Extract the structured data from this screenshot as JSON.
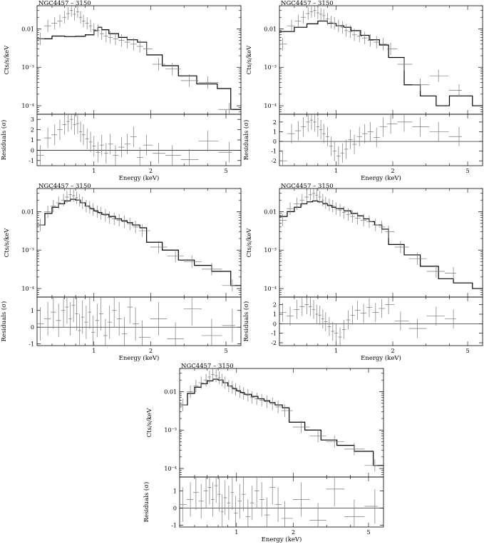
{
  "chart_data": [
    {
      "type": "line",
      "title": "NGC4457 – 3150",
      "xlabel": "Energy (keV)",
      "ylabel": "Cts/s/keV",
      "residual_ylabel": "Residuals (σ)",
      "xscale": "log",
      "yscale": "log",
      "xlim": [
        0.5,
        6.0
      ],
      "ylim": [
        6e-05,
        0.04
      ],
      "xticks": [
        "1",
        "2",
        "5"
      ],
      "yticks": [
        "0.01",
        "10⁻³",
        "10⁻⁴"
      ],
      "residual_ylim": [
        -1.5,
        3.5
      ],
      "residual_yticks": [
        "3",
        "2",
        "1",
        "0",
        "-1"
      ],
      "model": {
        "edges": [
          0.5,
          0.6,
          0.7,
          0.8,
          0.9,
          1.0,
          1.05,
          1.1,
          1.2,
          1.35,
          1.5,
          1.7,
          1.9,
          2.3,
          2.8,
          3.5,
          4.5,
          5.3,
          6.0
        ],
        "values": [
          0.0055,
          0.0065,
          0.0063,
          0.0064,
          0.007,
          0.009,
          0.011,
          0.0095,
          0.0075,
          0.006,
          0.0052,
          0.0045,
          0.0021,
          0.0011,
          0.0006,
          0.00037,
          0.00028,
          8e-05
        ]
      },
      "data": {
        "x": [
          0.52,
          0.57,
          0.62,
          0.66,
          0.7,
          0.73,
          0.76,
          0.79,
          0.82,
          0.85,
          0.88,
          0.92,
          0.96,
          1.0,
          1.05,
          1.1,
          1.16,
          1.22,
          1.3,
          1.4,
          1.5,
          1.62,
          1.75,
          1.9,
          2.2,
          2.6,
          3.2,
          4.0,
          5.2
        ],
        "y": [
          0.0055,
          0.012,
          0.014,
          0.016,
          0.02,
          0.025,
          0.03,
          0.024,
          0.028,
          0.02,
          0.016,
          0.014,
          0.012,
          0.0095,
          0.009,
          0.0075,
          0.0065,
          0.006,
          0.0055,
          0.005,
          0.0045,
          0.004,
          0.0035,
          0.003,
          0.0012,
          0.0009,
          0.00045,
          0.0004,
          8e-05
        ],
        "resid": [
          -0.5,
          1.2,
          1.5,
          2.0,
          2.5,
          2.8,
          3.0,
          2.5,
          2.6,
          1.8,
          1.5,
          1.1,
          0.8,
          0.4,
          -0.2,
          0.5,
          -0.3,
          0.6,
          -0.5,
          0.3,
          0.6,
          1.3,
          -0.7,
          0.5,
          -0.3,
          -0.5,
          -0.9,
          0.9,
          -0.2
        ]
      }
    },
    {
      "type": "line",
      "title": "NGC4457 – 3150",
      "xlabel": "Energy (keV)",
      "ylabel": "Cts/s/keV",
      "residual_ylabel": "Residuals (σ)",
      "xscale": "log",
      "yscale": "log",
      "xlim": [
        0.5,
        6.0
      ],
      "ylim": [
        6e-05,
        0.04
      ],
      "xticks": [
        "1",
        "2",
        "5"
      ],
      "yticks": [
        "0.01",
        "10⁻³",
        "10⁻⁴"
      ],
      "residual_ylim": [
        -2.5,
        2.8
      ],
      "residual_yticks": [
        "2",
        "1",
        "0",
        "-1",
        "-2"
      ],
      "model": {
        "edges": [
          0.5,
          0.6,
          0.7,
          0.8,
          0.9,
          1.0,
          1.1,
          1.2,
          1.35,
          1.5,
          1.7,
          1.9,
          2.3,
          2.8,
          3.4,
          4.0,
          5.3,
          6.0
        ],
        "values": [
          0.0085,
          0.011,
          0.0135,
          0.016,
          0.014,
          0.012,
          0.011,
          0.009,
          0.0068,
          0.0052,
          0.0038,
          0.0018,
          0.00035,
          0.00018,
          0.0001,
          0.00018,
          0.0001
        ]
      },
      "data": {
        "x": [
          0.52,
          0.58,
          0.63,
          0.67,
          0.71,
          0.74,
          0.77,
          0.8,
          0.83,
          0.86,
          0.9,
          0.94,
          0.98,
          1.03,
          1.08,
          1.13,
          1.19,
          1.25,
          1.33,
          1.42,
          1.52,
          1.64,
          1.78,
          1.95,
          2.3,
          2.8,
          3.5,
          4.5
        ],
        "y": [
          0.004,
          0.012,
          0.016,
          0.02,
          0.025,
          0.028,
          0.03,
          0.026,
          0.024,
          0.022,
          0.018,
          0.015,
          0.014,
          0.012,
          0.011,
          0.009,
          0.0085,
          0.007,
          0.0065,
          0.0058,
          0.005,
          0.0045,
          0.004,
          0.003,
          0.0012,
          0.00035,
          0.0006,
          0.00025
        ],
        "resid": [
          -2.0,
          0.8,
          1.1,
          1.5,
          2.0,
          2.2,
          2.0,
          1.5,
          1.2,
          0.8,
          0.5,
          -0.5,
          -1.0,
          -1.5,
          -1.2,
          -0.8,
          0.2,
          -0.3,
          0.5,
          0.8,
          1.0,
          0.4,
          1.5,
          1.8,
          2.0,
          1.5,
          1.0,
          0.5
        ]
      }
    },
    {
      "type": "line",
      "title": "NGC4457 – 3150",
      "xlabel": "Energy (keV)",
      "ylabel": "Cts/s/keV",
      "residual_ylabel": "Residuals (σ)",
      "xscale": "log",
      "yscale": "log",
      "xlim": [
        0.5,
        6.0
      ],
      "ylim": [
        6e-05,
        0.04
      ],
      "xticks": [
        "1",
        "2",
        "5"
      ],
      "yticks": [
        "0.01",
        "10⁻³",
        "10⁻⁴"
      ],
      "residual_ylim": [
        -1.1,
        1.8
      ],
      "residual_yticks": [
        "1",
        "0",
        "-1"
      ],
      "model": {
        "edges": [
          0.5,
          0.55,
          0.6,
          0.65,
          0.7,
          0.75,
          0.8,
          0.85,
          0.9,
          0.95,
          1.0,
          1.05,
          1.1,
          1.2,
          1.3,
          1.4,
          1.5,
          1.6,
          1.75,
          1.9,
          2.3,
          2.8,
          3.4,
          4.2,
          5.3,
          6.0
        ],
        "values": [
          0.0045,
          0.009,
          0.013,
          0.016,
          0.019,
          0.021,
          0.02,
          0.017,
          0.014,
          0.012,
          0.0105,
          0.0095,
          0.0085,
          0.0075,
          0.0065,
          0.0058,
          0.0052,
          0.0045,
          0.0038,
          0.0016,
          0.001,
          0.00055,
          0.0004,
          0.00028,
          0.00012
        ]
      },
      "data": {
        "x": [
          0.52,
          0.57,
          0.61,
          0.65,
          0.69,
          0.72,
          0.75,
          0.78,
          0.81,
          0.84,
          0.87,
          0.91,
          0.95,
          0.99,
          1.04,
          1.09,
          1.15,
          1.21,
          1.28,
          1.36,
          1.45,
          1.55,
          1.66,
          1.8,
          2.2,
          2.7,
          3.3,
          4.2,
          5.4
        ],
        "y": [
          0.0045,
          0.01,
          0.014,
          0.017,
          0.02,
          0.024,
          0.028,
          0.026,
          0.023,
          0.02,
          0.017,
          0.014,
          0.013,
          0.0115,
          0.01,
          0.009,
          0.008,
          0.007,
          0.0065,
          0.006,
          0.0055,
          0.0048,
          0.004,
          0.0032,
          0.0012,
          0.0007,
          0.0005,
          0.00032,
          0.00012
        ],
        "resid": [
          0.2,
          0.5,
          0.9,
          0.4,
          1.0,
          1.2,
          0.5,
          1.3,
          0.8,
          -0.2,
          0.6,
          0.3,
          0.9,
          -0.3,
          0.4,
          0.8,
          -0.5,
          0.3,
          1.0,
          0.5,
          -0.4,
          1.2,
          0.2,
          -0.6,
          0.5,
          -0.7,
          1.1,
          -0.5,
          0.1
        ]
      }
    },
    {
      "type": "line",
      "title": "NGC4457 – 3150",
      "xlabel": "Energy (keV)",
      "ylabel": "Cts/s/keV",
      "residual_ylabel": "Residuals (σ)",
      "xscale": "log",
      "yscale": "log",
      "xlim": [
        0.5,
        6.0
      ],
      "ylim": [
        6e-05,
        0.04
      ],
      "xticks": [
        "1",
        "2",
        "5"
      ],
      "yticks": [
        "0.01",
        "10⁻³",
        "10⁻⁴"
      ],
      "residual_ylim": [
        -2.3,
        2.8
      ],
      "residual_yticks": [
        "2",
        "1",
        "0",
        "-1",
        "-2"
      ],
      "model": {
        "edges": [
          0.5,
          0.55,
          0.6,
          0.65,
          0.7,
          0.75,
          0.8,
          0.85,
          0.9,
          0.95,
          1.0,
          1.1,
          1.2,
          1.3,
          1.4,
          1.5,
          1.6,
          1.75,
          1.9,
          2.3,
          2.8,
          3.5,
          4.2,
          5.3,
          6.0
        ],
        "values": [
          0.0075,
          0.01,
          0.013,
          0.016,
          0.018,
          0.019,
          0.018,
          0.016,
          0.0145,
          0.013,
          0.012,
          0.0105,
          0.009,
          0.0078,
          0.0065,
          0.0055,
          0.0045,
          0.0035,
          0.0014,
          0.00075,
          0.00038,
          0.00018,
          0.00014,
          0.0001
        ]
      },
      "data": {
        "x": [
          0.52,
          0.57,
          0.62,
          0.66,
          0.7,
          0.73,
          0.76,
          0.79,
          0.82,
          0.85,
          0.88,
          0.92,
          0.96,
          1.0,
          1.05,
          1.1,
          1.16,
          1.22,
          1.3,
          1.4,
          1.5,
          1.62,
          1.75,
          1.9,
          2.2,
          2.7,
          3.4,
          4.2
        ],
        "y": [
          0.006,
          0.012,
          0.016,
          0.02,
          0.024,
          0.028,
          0.03,
          0.027,
          0.024,
          0.02,
          0.017,
          0.015,
          0.014,
          0.012,
          0.011,
          0.0095,
          0.0085,
          0.0075,
          0.0068,
          0.006,
          0.0055,
          0.0045,
          0.004,
          0.003,
          0.0012,
          0.0006,
          0.00028,
          0.00025
        ],
        "resid": [
          1.2,
          0.8,
          1.5,
          1.8,
          2.0,
          1.8,
          1.5,
          1.0,
          0.9,
          0.5,
          0.2,
          -0.3,
          -0.8,
          -1.0,
          -1.4,
          -0.6,
          0.4,
          0.9,
          1.4,
          1.1,
          1.7,
          1.2,
          1.6,
          2.0,
          0.3,
          -0.5,
          0.8,
          0.5
        ]
      }
    },
    {
      "type": "line",
      "title": "NGC4457 – 3150",
      "xlabel": "Energy (keV)",
      "ylabel": "Cts/s/keV",
      "residual_ylabel": "Residuals (σ)",
      "xscale": "log",
      "yscale": "log",
      "xlim": [
        0.5,
        6.0
      ],
      "ylim": [
        6e-05,
        0.04
      ],
      "xticks": [
        "1",
        "2",
        "5"
      ],
      "yticks": [
        "0.01",
        "10⁻³",
        "10⁻⁴"
      ],
      "residual_ylim": [
        -1.1,
        1.8
      ],
      "residual_yticks": [
        "1",
        "0",
        "-1"
      ],
      "model": {
        "edges": [
          0.5,
          0.55,
          0.6,
          0.65,
          0.7,
          0.75,
          0.8,
          0.85,
          0.9,
          0.95,
          1.0,
          1.05,
          1.1,
          1.2,
          1.3,
          1.4,
          1.5,
          1.6,
          1.75,
          1.9,
          2.3,
          2.8,
          3.4,
          4.2,
          5.3,
          6.0
        ],
        "values": [
          0.0045,
          0.009,
          0.013,
          0.016,
          0.019,
          0.021,
          0.02,
          0.017,
          0.014,
          0.012,
          0.0105,
          0.0095,
          0.0085,
          0.0075,
          0.0065,
          0.0058,
          0.0052,
          0.0045,
          0.0038,
          0.0016,
          0.001,
          0.00055,
          0.0004,
          0.00028,
          0.00012
        ]
      },
      "data": {
        "x": [
          0.52,
          0.57,
          0.61,
          0.65,
          0.69,
          0.72,
          0.75,
          0.78,
          0.81,
          0.84,
          0.87,
          0.91,
          0.95,
          0.99,
          1.04,
          1.09,
          1.15,
          1.21,
          1.28,
          1.36,
          1.45,
          1.55,
          1.66,
          1.8,
          2.2,
          2.7,
          3.3,
          4.2,
          5.4
        ],
        "y": [
          0.0045,
          0.01,
          0.014,
          0.017,
          0.02,
          0.024,
          0.028,
          0.026,
          0.023,
          0.02,
          0.017,
          0.014,
          0.013,
          0.0115,
          0.01,
          0.009,
          0.008,
          0.007,
          0.0065,
          0.006,
          0.0055,
          0.0048,
          0.004,
          0.0032,
          0.0012,
          0.0007,
          0.0005,
          0.00032,
          0.00012
        ],
        "resid": [
          0.2,
          0.5,
          0.9,
          0.4,
          1.0,
          1.2,
          0.5,
          1.3,
          0.8,
          -0.2,
          0.6,
          0.3,
          0.9,
          -0.3,
          0.4,
          0.8,
          -0.5,
          0.3,
          1.0,
          0.5,
          -0.4,
          1.2,
          0.2,
          -0.6,
          0.5,
          -0.7,
          1.1,
          -0.5,
          0.1
        ]
      }
    }
  ]
}
